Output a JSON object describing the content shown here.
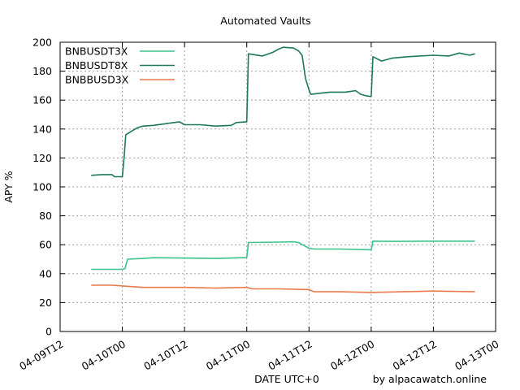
{
  "chart_data": {
    "type": "line",
    "title": "Automated Vaults",
    "xlabel": "DATE UTC+0",
    "ylabel": "APY %",
    "credit": "by alpacawatch.online",
    "xlim": [
      "2023-04-09T12:00",
      "2023-04-13T00:00"
    ],
    "ylim": [
      0,
      200
    ],
    "xticks": [
      "04-09T12",
      "04-10T00",
      "04-10T12",
      "04-11T00",
      "04-11T12",
      "04-12T00",
      "04-12T12",
      "04-13T00"
    ],
    "yticks": [
      0,
      20,
      40,
      60,
      80,
      100,
      120,
      140,
      160,
      180,
      200
    ],
    "grid": true,
    "legend_position": "top-left",
    "series": [
      {
        "name": "BNBUSDT3X",
        "color": "#3cc38c",
        "points": [
          [
            "2023-04-09T18:00",
            43
          ],
          [
            "2023-04-10T00:00",
            43
          ],
          [
            "2023-04-10T00:30",
            43.5
          ],
          [
            "2023-04-10T01:00",
            50
          ],
          [
            "2023-04-10T04:00",
            50.5
          ],
          [
            "2023-04-10T06:00",
            51
          ],
          [
            "2023-04-10T12:00",
            50.8
          ],
          [
            "2023-04-10T18:00",
            50.5
          ],
          [
            "2023-04-10T23:00",
            51
          ],
          [
            "2023-04-11T00:00",
            51
          ],
          [
            "2023-04-11T00:20",
            61.5
          ],
          [
            "2023-04-11T06:00",
            61.8
          ],
          [
            "2023-04-11T09:00",
            62
          ],
          [
            "2023-04-11T10:00",
            61.5
          ],
          [
            "2023-04-11T12:00",
            57.5
          ],
          [
            "2023-04-11T13:00",
            57
          ],
          [
            "2023-04-11T18:00",
            57
          ],
          [
            "2023-04-12T00:00",
            56.5
          ],
          [
            "2023-04-12T00:20",
            62.5
          ],
          [
            "2023-04-12T04:00",
            62.3
          ],
          [
            "2023-04-12T10:00",
            62.5
          ],
          [
            "2023-04-12T18:00",
            62.5
          ],
          [
            "2023-04-12T20:00",
            62.5
          ]
        ]
      },
      {
        "name": "BNBUSDT8X",
        "color": "#1b7a55",
        "points": [
          [
            "2023-04-09T18:00",
            108
          ],
          [
            "2023-04-09T20:00",
            108.5
          ],
          [
            "2023-04-09T22:00",
            108.5
          ],
          [
            "2023-04-09T22:30",
            107
          ],
          [
            "2023-04-10T00:00",
            107
          ],
          [
            "2023-04-10T00:20",
            120
          ],
          [
            "2023-04-10T00:40",
            136
          ],
          [
            "2023-04-10T02:00",
            139
          ],
          [
            "2023-04-10T03:00",
            141
          ],
          [
            "2023-04-10T04:00",
            142
          ],
          [
            "2023-04-10T06:00",
            142.5
          ],
          [
            "2023-04-10T09:00",
            144
          ],
          [
            "2023-04-10T11:00",
            145
          ],
          [
            "2023-04-10T12:00",
            143
          ],
          [
            "2023-04-10T15:00",
            143
          ],
          [
            "2023-04-10T18:00",
            142
          ],
          [
            "2023-04-10T21:00",
            142.5
          ],
          [
            "2023-04-10T22:00",
            144.5
          ],
          [
            "2023-04-11T00:00",
            145
          ],
          [
            "2023-04-11T00:20",
            192
          ],
          [
            "2023-04-11T03:00",
            190.5
          ],
          [
            "2023-04-11T05:00",
            193
          ],
          [
            "2023-04-11T06:00",
            195
          ],
          [
            "2023-04-11T07:00",
            196.5
          ],
          [
            "2023-04-11T09:00",
            196
          ],
          [
            "2023-04-11T10:00",
            194
          ],
          [
            "2023-04-11T10:40",
            191
          ],
          [
            "2023-04-11T11:20",
            175
          ],
          [
            "2023-04-11T12:00",
            167
          ],
          [
            "2023-04-11T12:20",
            164
          ],
          [
            "2023-04-11T16:00",
            165.5
          ],
          [
            "2023-04-11T19:00",
            165.5
          ],
          [
            "2023-04-11T21:00",
            166.5
          ],
          [
            "2023-04-11T22:00",
            164
          ],
          [
            "2023-04-11T23:00",
            163
          ],
          [
            "2023-04-12T00:00",
            162.5
          ],
          [
            "2023-04-12T00:20",
            190
          ],
          [
            "2023-04-12T02:00",
            187
          ],
          [
            "2023-04-12T04:00",
            189
          ],
          [
            "2023-04-12T07:00",
            190
          ],
          [
            "2023-04-12T12:00",
            191
          ],
          [
            "2023-04-12T15:00",
            190.5
          ],
          [
            "2023-04-12T17:00",
            192.5
          ],
          [
            "2023-04-12T19:00",
            191
          ],
          [
            "2023-04-12T20:00",
            192
          ]
        ]
      },
      {
        "name": "BNBBUSD3X",
        "color": "#ea7a4e",
        "points": [
          [
            "2023-04-09T18:00",
            32
          ],
          [
            "2023-04-09T22:00",
            32
          ],
          [
            "2023-04-10T00:00",
            31.5
          ],
          [
            "2023-04-10T04:00",
            30.5
          ],
          [
            "2023-04-10T12:00",
            30.5
          ],
          [
            "2023-04-10T18:00",
            30
          ],
          [
            "2023-04-11T00:00",
            30.5
          ],
          [
            "2023-04-11T01:00",
            29.5
          ],
          [
            "2023-04-11T06:00",
            29.5
          ],
          [
            "2023-04-11T12:00",
            29
          ],
          [
            "2023-04-11T13:00",
            27.5
          ],
          [
            "2023-04-11T18:00",
            27.5
          ],
          [
            "2023-04-12T00:00",
            27
          ],
          [
            "2023-04-12T06:00",
            27.5
          ],
          [
            "2023-04-12T12:00",
            28
          ],
          [
            "2023-04-12T20:00",
            27.5
          ]
        ]
      }
    ]
  }
}
